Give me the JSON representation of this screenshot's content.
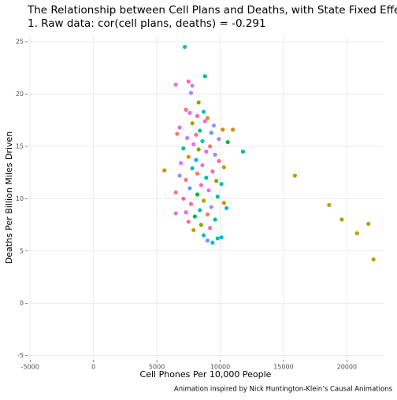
{
  "chart_data": {
    "type": "scatter",
    "title": "The Relationship between Cell Plans and Deaths, with State Fixed Effects",
    "subtitle": "1. Raw data: cor(cell plans, deaths) = -0.291",
    "x_label": "Cell Phones Per 10,000 People",
    "y_label": "Deaths Per Billion Miles Driven",
    "caption": "Animation inspired by Nick Huntington-Klein’s Causal Animations",
    "xlim": [
      -5200,
      22900
    ],
    "ylim": [
      -5.4,
      25.6
    ],
    "xticks": [
      -5000,
      0,
      5000,
      10000,
      15000,
      20000
    ],
    "yticks": [
      -5,
      0,
      5,
      10,
      15,
      20,
      25
    ],
    "grid": true,
    "x": [
      7200,
      6500,
      8800,
      7500,
      7800,
      7700,
      8300,
      7300,
      7600,
      8700,
      8200,
      9000,
      8800,
      7800,
      9500,
      10200,
      11000,
      6800,
      8400,
      9300,
      8100,
      6600,
      7400,
      9900,
      8600,
      10600,
      7900,
      9200,
      8300,
      7100,
      8900,
      11800,
      9600,
      7500,
      8100,
      9900,
      6900,
      8600,
      10300,
      5600,
      7800,
      9400,
      8200,
      6800,
      8900,
      7300,
      9700,
      10100,
      8500,
      7600,
      9100,
      6500,
      8200,
      9800,
      7100,
      8700,
      10300,
      7700,
      10500,
      9300,
      8400,
      7300,
      6500,
      9000,
      8000,
      9600,
      7500,
      8500,
      9200,
      7900,
      8700,
      9800,
      9400,
      10100,
      9000,
      15900,
      18600,
      19600,
      20800,
      21700,
      22100
    ],
    "values": [
      24.5,
      20.9,
      21.7,
      21.2,
      20.8,
      20.1,
      19.2,
      18.5,
      18.2,
      18.3,
      17.9,
      17.7,
      17.4,
      17.2,
      17.0,
      16.6,
      16.6,
      16.8,
      16.5,
      16.3,
      16.1,
      16.2,
      15.8,
      15.7,
      15.5,
      15.4,
      15.2,
      15.0,
      14.7,
      14.8,
      14.5,
      14.5,
      14.2,
      14.0,
      13.7,
      13.6,
      13.4,
      13.2,
      13.0,
      12.7,
      12.9,
      12.6,
      12.4,
      12.2,
      12.0,
      11.8,
      11.7,
      11.4,
      11.3,
      11.0,
      10.8,
      10.6,
      10.4,
      10.2,
      10.0,
      9.8,
      9.6,
      9.5,
      9.1,
      9.2,
      8.9,
      8.7,
      8.6,
      8.5,
      8.3,
      8.0,
      7.8,
      7.5,
      7.2,
      7.0,
      6.5,
      6.2,
      5.8,
      6.3,
      6.0,
      12.2,
      9.4,
      8.0,
      6.7,
      7.6,
      4.2
    ],
    "colors": [
      "#00BFC4",
      "#E76BF3",
      "#00C08B",
      "#FF64B0",
      "#C77CFF",
      "#9590FF",
      "#7CAE00",
      "#F8766D",
      "#E76BF3",
      "#00BFC4",
      "#FF6C91",
      "#DE8C00",
      "#F564E3",
      "#B79F00",
      "#9590FF",
      "#DE8C00",
      "#DE8C00",
      "#F564E3",
      "#00C08B",
      "#619CFF",
      "#FF6C91",
      "#F8766D",
      "#C77CFF",
      "#9590FF",
      "#00BFC4",
      "#00BA38",
      "#E76BF3",
      "#F8766D",
      "#7CAE00",
      "#00C08B",
      "#F564E3",
      "#00C08B",
      "#9590FF",
      "#DE8C00",
      "#00B4F0",
      "#FF6C91",
      "#E76BF3",
      "#C77CFF",
      "#B79F00",
      "#DE8C00",
      "#00BFC4",
      "#FF64B0",
      "#F8766D",
      "#9590FF",
      "#00C08B",
      "#FF6C91",
      "#7CAE00",
      "#00BFC4",
      "#F564E3",
      "#619CFF",
      "#E76BF3",
      "#F8766D",
      "#00BA38",
      "#00C08B",
      "#FF64B0",
      "#B79F00",
      "#DE8C00",
      "#FF6C91",
      "#00B4F0",
      "#9590FF",
      "#00BFC4",
      "#F564E3",
      "#E76BF3",
      "#F8766D",
      "#00BA38",
      "#00C08B",
      "#FF6C91",
      "#7CAE00",
      "#FF64B0",
      "#B79F00",
      "#00BFC4",
      "#00C08B",
      "#00BFC4",
      "#00B4F0",
      "#619CFF",
      "#B79F00",
      "#B79F00",
      "#B79F00",
      "#B79F00",
      "#B79F00",
      "#B79F00"
    ]
  }
}
